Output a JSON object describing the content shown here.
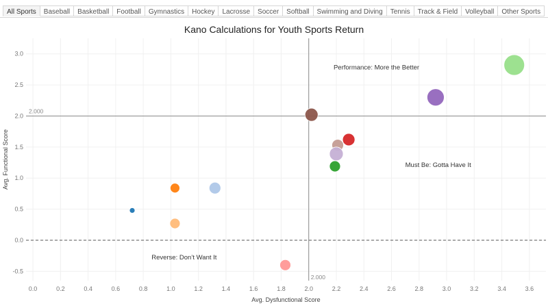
{
  "tabs": [
    {
      "label": "All Sports",
      "active": true
    },
    {
      "label": "Baseball",
      "active": false
    },
    {
      "label": "Basketball",
      "active": false
    },
    {
      "label": "Football",
      "active": false
    },
    {
      "label": "Gymnastics",
      "active": false
    },
    {
      "label": "Hockey",
      "active": false
    },
    {
      "label": "Lacrosse",
      "active": false
    },
    {
      "label": "Soccer",
      "active": false
    },
    {
      "label": "Softball",
      "active": false
    },
    {
      "label": "Swimming and Diving",
      "active": false
    },
    {
      "label": "Tennis",
      "active": false
    },
    {
      "label": "Track & Field",
      "active": false
    },
    {
      "label": "Volleyball",
      "active": false
    },
    {
      "label": "Other Sports",
      "active": false
    }
  ],
  "chart_data": {
    "type": "scatter",
    "title": "Kano Calculations for Youth Sports Return",
    "xlabel": "Avg. Dysfunctional Score",
    "ylabel": "Avg. Functional Score",
    "xlim": [
      -0.05,
      3.72
    ],
    "ylim": [
      -0.65,
      3.25
    ],
    "xticks": [
      "0.0",
      "0.2",
      "0.4",
      "0.6",
      "0.8",
      "1.0",
      "1.2",
      "1.4",
      "1.6",
      "1.8",
      "2.0",
      "2.2",
      "2.4",
      "2.6",
      "2.8",
      "3.0",
      "3.2",
      "3.4",
      "3.6"
    ],
    "yticks": [
      "-0.5",
      "0.0",
      "0.5",
      "1.0",
      "1.5",
      "2.0",
      "2.5",
      "3.0"
    ],
    "reference_lines": {
      "x": 2.0,
      "y": 2.0,
      "x_label": "2.000",
      "y_label": "2.000",
      "zero_line_y": 0.0
    },
    "annotations": [
      {
        "text": "Performance: More the Better",
        "x": 2.18,
        "y": 2.75
      },
      {
        "text": "Must Be: Gotta Have It",
        "x": 2.7,
        "y": 1.18
      },
      {
        "text": "Reverse: Don’t Want It",
        "x": 0.86,
        "y": -0.31
      }
    ],
    "points": [
      {
        "x": 0.72,
        "y": 0.48,
        "size": 4,
        "color": "#1f77b4"
      },
      {
        "x": 1.03,
        "y": 0.84,
        "size": 7,
        "color": "#ff7f0e"
      },
      {
        "x": 1.03,
        "y": 0.27,
        "size": 7.5,
        "color": "#ffbb78"
      },
      {
        "x": 1.32,
        "y": 0.84,
        "size": 8.5,
        "color": "#aec7e8"
      },
      {
        "x": 1.83,
        "y": -0.4,
        "size": 8,
        "color": "#ff9896"
      },
      {
        "x": 2.02,
        "y": 2.02,
        "size": 9.5,
        "color": "#8c564b"
      },
      {
        "x": 2.19,
        "y": 1.19,
        "size": 8,
        "color": "#2ca02c"
      },
      {
        "x": 2.21,
        "y": 1.53,
        "size": 8.5,
        "color": "#c49c94"
      },
      {
        "x": 2.29,
        "y": 1.62,
        "size": 9,
        "color": "#d62728"
      },
      {
        "x": 2.2,
        "y": 1.39,
        "size": 10,
        "color": "#c5b0d5"
      },
      {
        "x": 2.92,
        "y": 2.3,
        "size": 12.5,
        "color": "#9467bd"
      },
      {
        "x": 3.49,
        "y": 2.82,
        "size": 15,
        "color": "#98df8a"
      }
    ]
  }
}
